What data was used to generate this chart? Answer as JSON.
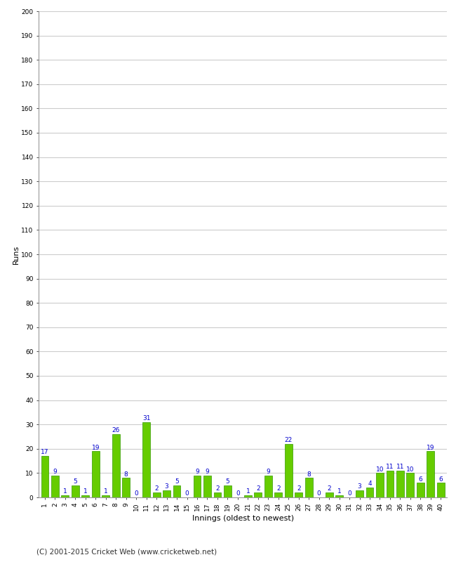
{
  "values": [
    17,
    9,
    1,
    5,
    1,
    19,
    1,
    26,
    8,
    0,
    31,
    2,
    3,
    5,
    0,
    9,
    9,
    2,
    5,
    0,
    1,
    2,
    9,
    2,
    22,
    2,
    8,
    0,
    2,
    1,
    0,
    3,
    4,
    10,
    11,
    11,
    10,
    6,
    19,
    6
  ],
  "labels": [
    "1",
    "2",
    "3",
    "4",
    "5",
    "6",
    "7",
    "8",
    "9",
    "10",
    "11",
    "12",
    "13",
    "14",
    "15",
    "16",
    "17",
    "18",
    "19",
    "20",
    "21",
    "22",
    "23",
    "24",
    "25",
    "26",
    "27",
    "28",
    "29",
    "30",
    "31",
    "32",
    "33",
    "34",
    "35",
    "36",
    "37",
    "38",
    "39",
    "40"
  ],
  "bar_color": "#66cc00",
  "bar_edge_color": "#339900",
  "label_color": "#0000cc",
  "xlabel": "Innings (oldest to newest)",
  "ylabel": "Runs",
  "ylim": [
    0,
    200
  ],
  "yticks": [
    0,
    10,
    20,
    30,
    40,
    50,
    60,
    70,
    80,
    90,
    100,
    110,
    120,
    130,
    140,
    150,
    160,
    170,
    180,
    190,
    200
  ],
  "grid_color": "#cccccc",
  "bg_color": "#ffffff",
  "footer": "(C) 2001-2015 Cricket Web (www.cricketweb.net)",
  "axis_label_fontsize": 8,
  "bar_label_fontsize": 6.5,
  "tick_fontsize": 6.5,
  "footer_fontsize": 7.5
}
